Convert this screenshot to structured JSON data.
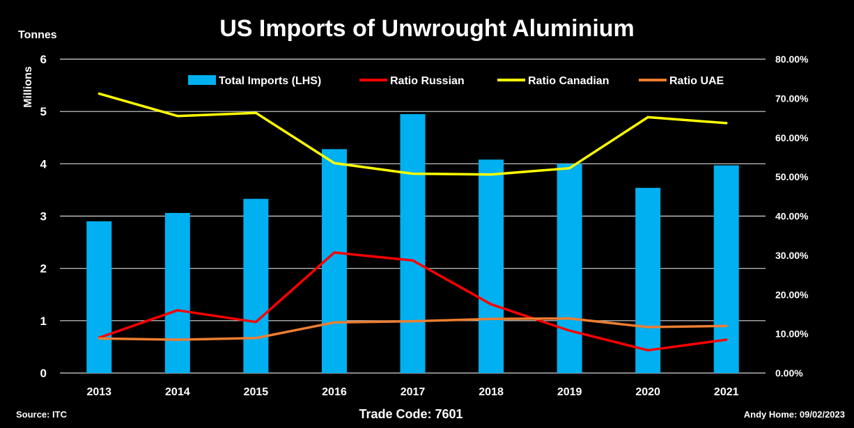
{
  "chart_data": {
    "type": "bar",
    "title": "US Imports of Unwrought Aluminium",
    "ylabel_top": "Tonnes",
    "ylabel_units": "Millions",
    "categories": [
      "2013",
      "2014",
      "2015",
      "2016",
      "2017",
      "2018",
      "2019",
      "2020",
      "2021"
    ],
    "ylim_left": [
      0,
      6
    ],
    "yticks_left": [
      "0",
      "1",
      "2",
      "3",
      "4",
      "5",
      "6"
    ],
    "ylim_right": [
      0,
      0.8
    ],
    "yticks_right": [
      "0.00%",
      "10.00%",
      "20.00%",
      "30.00%",
      "40.00%",
      "50.00%",
      "60.00%",
      "70.00%",
      "80.00%"
    ],
    "grid": true,
    "legend_position": "top",
    "series": [
      {
        "name": "Total Imports (LHS)",
        "kind": "bar",
        "axis": "left",
        "color": "#00B0F0",
        "values": [
          2.9,
          3.06,
          3.33,
          4.28,
          4.95,
          4.08,
          4.0,
          3.54,
          3.97
        ]
      },
      {
        "name": "Ratio Russian",
        "kind": "line",
        "axis": "right",
        "color": "#FF0000",
        "values": [
          0.09,
          0.16,
          0.13,
          0.307,
          0.287,
          0.175,
          0.108,
          0.058,
          0.085
        ]
      },
      {
        "name": "Ratio Canadian",
        "kind": "line",
        "axis": "right",
        "color": "#FFFF00",
        "values": [
          0.712,
          0.655,
          0.663,
          0.535,
          0.508,
          0.506,
          0.522,
          0.652,
          0.637
        ]
      },
      {
        "name": "Ratio UAE",
        "kind": "line",
        "axis": "right",
        "color": "#ED7D31",
        "values": [
          0.088,
          0.085,
          0.089,
          0.129,
          0.132,
          0.138,
          0.139,
          0.117,
          0.12
        ]
      }
    ]
  },
  "footer": {
    "source": "Source: ITC",
    "trade_code": "Trade Code: 7601",
    "author": "Andy Home: 09/02/2023"
  }
}
